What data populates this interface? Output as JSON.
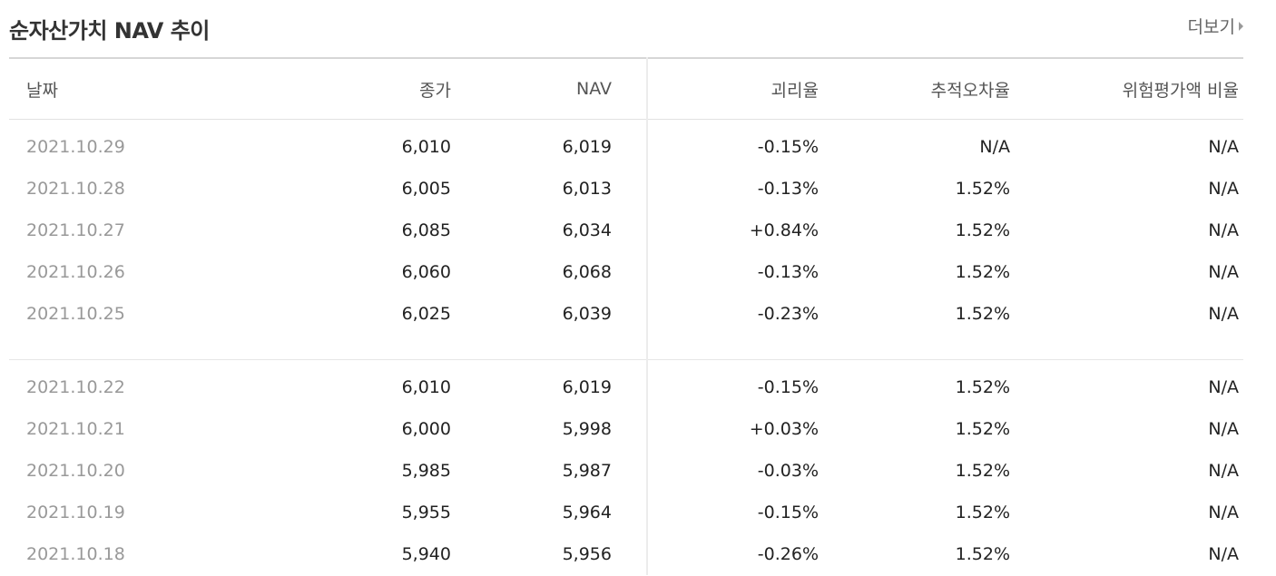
{
  "header": {
    "title": "순자산가치 NAV 추이",
    "more_label": "더보기"
  },
  "table": {
    "columns": [
      "날짜",
      "종가",
      "NAV",
      "괴리율",
      "추적오차율",
      "위험평가액 비율"
    ],
    "groups": [
      [
        {
          "date": "2021.10.29",
          "close": "6,010",
          "nav": "6,019",
          "deviation": "-0.15%",
          "dir": "down",
          "tracking": "N/A",
          "risk": "N/A"
        },
        {
          "date": "2021.10.28",
          "close": "6,005",
          "nav": "6,013",
          "deviation": "-0.13%",
          "dir": "down",
          "tracking": "1.52%",
          "risk": "N/A"
        },
        {
          "date": "2021.10.27",
          "close": "6,085",
          "nav": "6,034",
          "deviation": "+0.84%",
          "dir": "up",
          "tracking": "1.52%",
          "risk": "N/A"
        },
        {
          "date": "2021.10.26",
          "close": "6,060",
          "nav": "6,068",
          "deviation": "-0.13%",
          "dir": "down",
          "tracking": "1.52%",
          "risk": "N/A"
        },
        {
          "date": "2021.10.25",
          "close": "6,025",
          "nav": "6,039",
          "deviation": "-0.23%",
          "dir": "down",
          "tracking": "1.52%",
          "risk": "N/A"
        }
      ],
      [
        {
          "date": "2021.10.22",
          "close": "6,010",
          "nav": "6,019",
          "deviation": "-0.15%",
          "dir": "down",
          "tracking": "1.52%",
          "risk": "N/A"
        },
        {
          "date": "2021.10.21",
          "close": "6,000",
          "nav": "5,998",
          "deviation": "+0.03%",
          "dir": "up",
          "tracking": "1.52%",
          "risk": "N/A"
        },
        {
          "date": "2021.10.20",
          "close": "5,985",
          "nav": "5,987",
          "deviation": "-0.03%",
          "dir": "down",
          "tracking": "1.52%",
          "risk": "N/A"
        },
        {
          "date": "2021.10.19",
          "close": "5,955",
          "nav": "5,964",
          "deviation": "-0.15%",
          "dir": "down",
          "tracking": "1.52%",
          "risk": "N/A"
        },
        {
          "date": "2021.10.18",
          "close": "5,940",
          "nav": "5,956",
          "deviation": "-0.26%",
          "dir": "down",
          "tracking": "1.52%",
          "risk": "N/A"
        }
      ]
    ]
  },
  "colors": {
    "up": "#d0021b",
    "down": "#1a5fb4"
  }
}
